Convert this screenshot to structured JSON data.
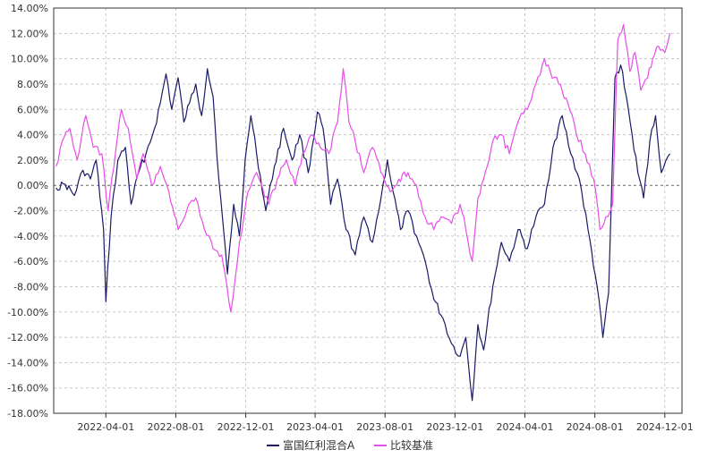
{
  "chart_data": {
    "type": "line",
    "title": "",
    "xlabel": "",
    "ylabel": "",
    "ylim": [
      -18,
      14
    ],
    "y_ticks": [
      14,
      12,
      10,
      8,
      6,
      4,
      2,
      0,
      -2,
      -4,
      -6,
      -8,
      -10,
      -12,
      -14,
      -16,
      -18
    ],
    "y_tick_labels": [
      "14.00%",
      "12.00%",
      "10.00%",
      "8.00%",
      "6.00%",
      "4.00%",
      "2.00%",
      "0.00%",
      "-2.00%",
      "-4.00%",
      "-6.00%",
      "-8.00%",
      "-10.00%",
      "-12.00%",
      "-14.00%",
      "-16.00%",
      "-18.00%"
    ],
    "xlim": [
      "2021-12-31",
      "2024-12-31"
    ],
    "x_ticks": [
      "2022-04-01",
      "2022-08-01",
      "2022-12-01",
      "2023-04-01",
      "2023-08-01",
      "2023-12-01",
      "2024-04-01",
      "2024-08-01",
      "2024-12-01"
    ],
    "grid": true,
    "legend_position": "bottom-center",
    "series": [
      {
        "name": "富国红利混合A",
        "color": "#1a1a66",
        "points": [
          [
            "2022-01-04",
            -0.2
          ],
          [
            "2022-01-20",
            0.1
          ],
          [
            "2022-02-05",
            -0.8
          ],
          [
            "2022-02-20",
            1.2
          ],
          [
            "2022-03-05",
            0.5
          ],
          [
            "2022-03-15",
            2.0
          ],
          [
            "2022-03-28",
            -3.5
          ],
          [
            "2022-04-01",
            -9.2
          ],
          [
            "2022-04-10",
            -2.5
          ],
          [
            "2022-04-22",
            2.0
          ],
          [
            "2022-05-05",
            3.0
          ],
          [
            "2022-05-15",
            -1.5
          ],
          [
            "2022-05-28",
            1.0
          ],
          [
            "2022-06-10",
            2.5
          ],
          [
            "2022-06-25",
            4.5
          ],
          [
            "2022-07-05",
            6.5
          ],
          [
            "2022-07-15",
            8.8
          ],
          [
            "2022-07-25",
            6.0
          ],
          [
            "2022-08-05",
            8.5
          ],
          [
            "2022-08-15",
            5.0
          ],
          [
            "2022-08-25",
            6.5
          ],
          [
            "2022-09-05",
            8.0
          ],
          [
            "2022-09-15",
            5.5
          ],
          [
            "2022-09-25",
            9.2
          ],
          [
            "2022-10-05",
            7.0
          ],
          [
            "2022-10-15",
            0.5
          ],
          [
            "2022-10-30",
            -7.0
          ],
          [
            "2022-11-10",
            -1.5
          ],
          [
            "2022-11-20",
            -4.0
          ],
          [
            "2022-11-30",
            2.0
          ],
          [
            "2022-12-10",
            5.5
          ],
          [
            "2022-12-20",
            2.5
          ],
          [
            "2023-01-05",
            -2.0
          ],
          [
            "2023-01-20",
            1.5
          ],
          [
            "2023-02-05",
            4.5
          ],
          [
            "2023-02-20",
            2.0
          ],
          [
            "2023-03-05",
            4.0
          ],
          [
            "2023-03-20",
            1.0
          ],
          [
            "2023-04-05",
            5.8
          ],
          [
            "2023-04-15",
            4.5
          ],
          [
            "2023-04-28",
            -1.5
          ],
          [
            "2023-05-10",
            0.5
          ],
          [
            "2023-05-25",
            -3.5
          ],
          [
            "2023-06-10",
            -5.5
          ],
          [
            "2023-06-25",
            -2.5
          ],
          [
            "2023-07-10",
            -4.5
          ],
          [
            "2023-07-25",
            -1.0
          ],
          [
            "2023-08-05",
            2.0
          ],
          [
            "2023-08-15",
            -0.5
          ],
          [
            "2023-08-28",
            -3.5
          ],
          [
            "2023-09-10",
            -2.0
          ],
          [
            "2023-09-25",
            -4.0
          ],
          [
            "2023-10-10",
            -6.0
          ],
          [
            "2023-10-25",
            -9.0
          ],
          [
            "2023-11-10",
            -10.5
          ],
          [
            "2023-11-25",
            -12.5
          ],
          [
            "2023-12-10",
            -13.5
          ],
          [
            "2023-12-20",
            -12.0
          ],
          [
            "2023-12-31",
            -17.0
          ],
          [
            "2024-01-10",
            -11.0
          ],
          [
            "2024-01-20",
            -13.0
          ],
          [
            "2024-02-05",
            -8.0
          ],
          [
            "2024-02-20",
            -4.5
          ],
          [
            "2024-03-05",
            -6.0
          ],
          [
            "2024-03-20",
            -3.5
          ],
          [
            "2024-04-05",
            -5.0
          ],
          [
            "2024-04-20",
            -2.5
          ],
          [
            "2024-05-05",
            -1.5
          ],
          [
            "2024-05-20",
            3.0
          ],
          [
            "2024-06-05",
            5.5
          ],
          [
            "2024-06-20",
            2.5
          ],
          [
            "2024-07-05",
            0.5
          ],
          [
            "2024-07-20",
            -3.5
          ],
          [
            "2024-08-05",
            -8.0
          ],
          [
            "2024-08-15",
            -12.0
          ],
          [
            "2024-08-25",
            -8.5
          ],
          [
            "2024-09-05",
            8.5
          ],
          [
            "2024-09-15",
            9.5
          ],
          [
            "2024-09-25",
            7.0
          ],
          [
            "2024-10-05",
            4.0
          ],
          [
            "2024-10-15",
            1.0
          ],
          [
            "2024-10-25",
            -1.0
          ],
          [
            "2024-11-05",
            3.5
          ],
          [
            "2024-11-15",
            5.5
          ],
          [
            "2024-11-25",
            1.0
          ],
          [
            "2024-12-10",
            2.5
          ]
        ]
      },
      {
        "name": "比较基准",
        "color": "#e84de8",
        "points": [
          [
            "2022-01-04",
            1.5
          ],
          [
            "2022-01-15",
            3.5
          ],
          [
            "2022-01-28",
            4.5
          ],
          [
            "2022-02-10",
            2.0
          ],
          [
            "2022-02-25",
            5.5
          ],
          [
            "2022-03-10",
            3.0
          ],
          [
            "2022-03-25",
            2.5
          ],
          [
            "2022-04-05",
            -2.0
          ],
          [
            "2022-04-15",
            1.5
          ],
          [
            "2022-04-28",
            6.0
          ],
          [
            "2022-05-10",
            4.5
          ],
          [
            "2022-05-25",
            0.5
          ],
          [
            "2022-06-05",
            2.5
          ],
          [
            "2022-06-20",
            0.0
          ],
          [
            "2022-07-05",
            1.5
          ],
          [
            "2022-07-20",
            -0.5
          ],
          [
            "2022-08-05",
            -3.5
          ],
          [
            "2022-08-20",
            -2.0
          ],
          [
            "2022-09-05",
            -1.0
          ],
          [
            "2022-09-20",
            -3.5
          ],
          [
            "2022-10-05",
            -5.0
          ],
          [
            "2022-10-20",
            -5.5
          ],
          [
            "2022-11-05",
            -10.0
          ],
          [
            "2022-11-20",
            -4.5
          ],
          [
            "2022-12-05",
            -0.5
          ],
          [
            "2022-12-20",
            1.0
          ],
          [
            "2023-01-10",
            -1.5
          ],
          [
            "2023-01-25",
            0.5
          ],
          [
            "2023-02-10",
            2.0
          ],
          [
            "2023-02-25",
            0.0
          ],
          [
            "2023-03-10",
            2.5
          ],
          [
            "2023-03-25",
            4.0
          ],
          [
            "2023-04-10",
            3.0
          ],
          [
            "2023-04-25",
            2.5
          ],
          [
            "2023-05-10",
            5.0
          ],
          [
            "2023-05-20",
            9.2
          ],
          [
            "2023-05-30",
            5.0
          ],
          [
            "2023-06-10",
            3.5
          ],
          [
            "2023-06-25",
            1.0
          ],
          [
            "2023-07-10",
            3.0
          ],
          [
            "2023-07-25",
            1.0
          ],
          [
            "2023-08-10",
            -0.5
          ],
          [
            "2023-08-25",
            0.5
          ],
          [
            "2023-09-10",
            1.0
          ],
          [
            "2023-09-25",
            0.0
          ],
          [
            "2023-10-10",
            -2.5
          ],
          [
            "2023-10-25",
            -3.5
          ],
          [
            "2023-11-10",
            -2.5
          ],
          [
            "2023-11-25",
            -3.0
          ],
          [
            "2023-12-10",
            -1.5
          ],
          [
            "2023-12-20",
            -3.5
          ],
          [
            "2023-12-31",
            -6.0
          ],
          [
            "2024-01-10",
            -1.0
          ],
          [
            "2024-01-20",
            0.5
          ],
          [
            "2024-02-05",
            3.5
          ],
          [
            "2024-02-20",
            4.0
          ],
          [
            "2024-03-05",
            2.5
          ],
          [
            "2024-03-20",
            5.0
          ],
          [
            "2024-04-05",
            6.0
          ],
          [
            "2024-04-20",
            8.0
          ],
          [
            "2024-05-05",
            10.0
          ],
          [
            "2024-05-15",
            9.0
          ],
          [
            "2024-05-30",
            8.0
          ],
          [
            "2024-06-15",
            6.5
          ],
          [
            "2024-06-30",
            4.0
          ],
          [
            "2024-07-15",
            2.5
          ],
          [
            "2024-07-30",
            0.5
          ],
          [
            "2024-08-10",
            -3.5
          ],
          [
            "2024-08-20",
            -2.5
          ],
          [
            "2024-09-01",
            -1.5
          ],
          [
            "2024-09-10",
            11.5
          ],
          [
            "2024-09-20",
            12.7
          ],
          [
            "2024-10-01",
            9.0
          ],
          [
            "2024-10-10",
            10.5
          ],
          [
            "2024-10-20",
            7.5
          ],
          [
            "2024-11-01",
            8.5
          ],
          [
            "2024-11-10",
            10.0
          ],
          [
            "2024-11-20",
            11.0
          ],
          [
            "2024-12-01",
            10.5
          ],
          [
            "2024-12-10",
            12.0
          ]
        ]
      }
    ]
  }
}
